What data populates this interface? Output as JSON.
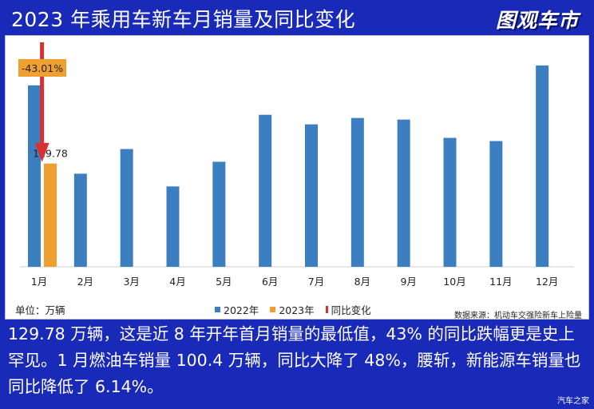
{
  "header": {
    "title": "2023 年乘用车新车月销量及同比变化",
    "logo_text": "图观车市"
  },
  "chart_data": {
    "type": "bar",
    "categories": [
      "1月",
      "2月",
      "3月",
      "4月",
      "5月",
      "6月",
      "7月",
      "8月",
      "9月",
      "10月",
      "11月",
      "12月"
    ],
    "series": [
      {
        "name": "2022年",
        "color": "#3c7fc1",
        "values": [
          228,
          117,
          148,
          101,
          132,
          191,
          179,
          187,
          185,
          162,
          158,
          253
        ]
      },
      {
        "name": "2023年",
        "color": "#f0a030",
        "values": [
          129.78,
          null,
          null,
          null,
          null,
          null,
          null,
          null,
          null,
          null,
          null,
          null
        ]
      }
    ],
    "yoy_series": {
      "name": "同比变化",
      "color": "#d93030"
    },
    "data_labels": {
      "value_2023_jan": "129.78",
      "yoy_jan": "-43.01%"
    },
    "unit": "单位：万辆",
    "source": "数据来源：机动车交强险新车上险量",
    "ylim": [
      0,
      270
    ]
  },
  "caption": "129.78 万辆，这是近 8 年开年首月销量的最低值，43% 的同比跌幅更是史上罕见。1 月燃油车销量 100.4 万辆，同比大降了 48%，腰斩，新能源车销量也同比降低了 6.14%。",
  "watermark": "汽车之家"
}
